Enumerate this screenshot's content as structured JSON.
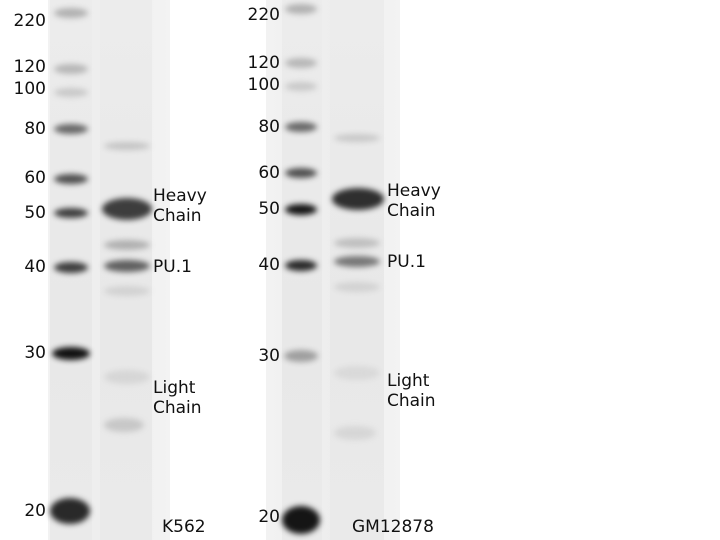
{
  "panels": [
    {
      "id": "left",
      "cell_line": "K562",
      "mw_markers": [
        "220",
        "120",
        "100",
        "80",
        "60",
        "50",
        "40",
        "30",
        "20"
      ],
      "band_labels": [
        "Heavy\nChain",
        "PU.1",
        "Light\nChain"
      ]
    },
    {
      "id": "right",
      "cell_line": "GM12878",
      "mw_markers": [
        "220",
        "120",
        "100",
        "80",
        "60",
        "50",
        "40",
        "30",
        "20"
      ],
      "band_labels": [
        "Heavy\nChain",
        "PU.1",
        "Light\nChain"
      ]
    }
  ]
}
